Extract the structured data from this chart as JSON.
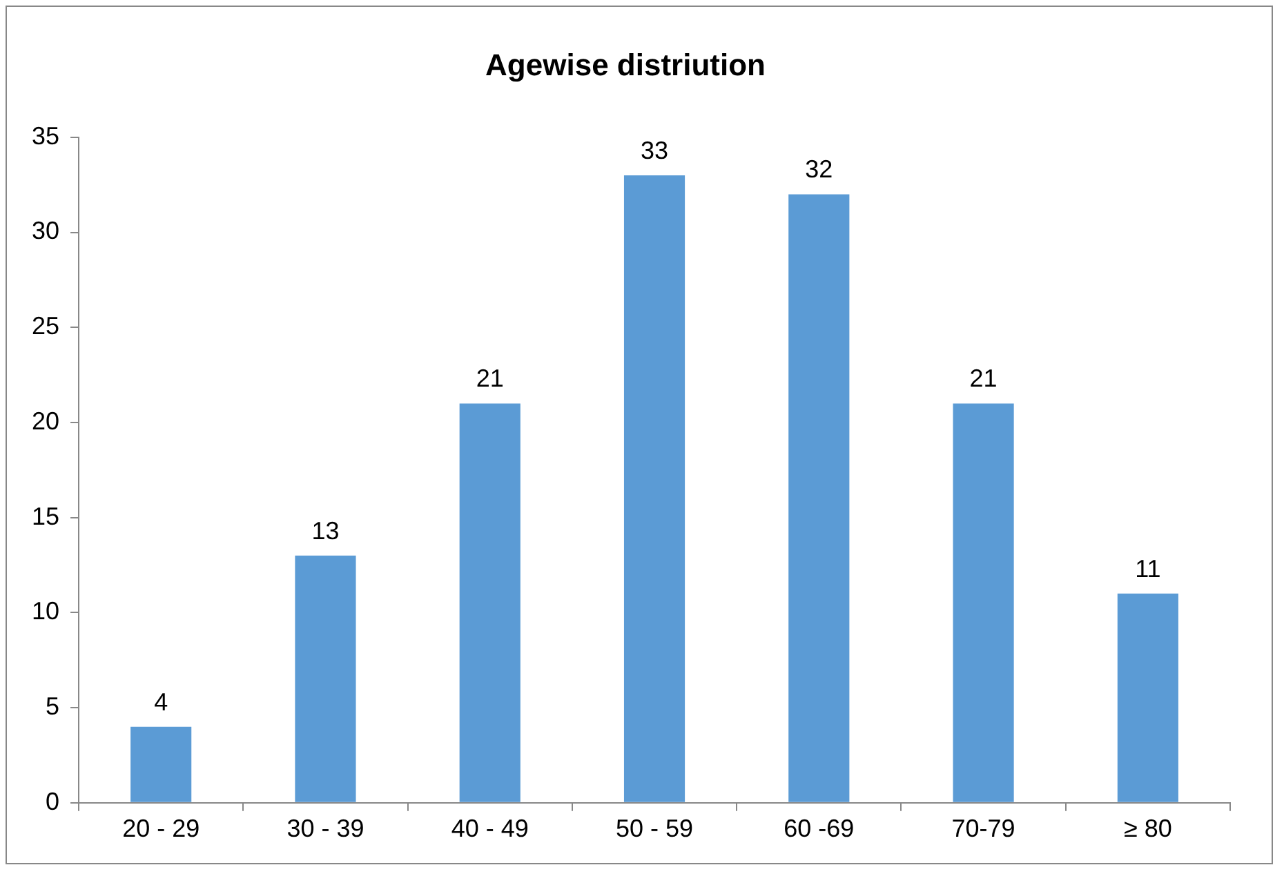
{
  "chart_data": {
    "type": "bar",
    "title": "Agewise distriution",
    "categories": [
      "20 - 29",
      "30 - 39",
      "40 - 49",
      "50 - 59",
      "60 -69",
      "70-79",
      "≥ 80"
    ],
    "values": [
      4,
      13,
      21,
      33,
      32,
      21,
      11
    ],
    "color": "#5b9bd5",
    "ylim": [
      0,
      35
    ],
    "yticks": [
      0,
      5,
      10,
      15,
      20,
      25,
      30,
      35
    ],
    "grid": false,
    "legend": false,
    "data_labels": true
  }
}
